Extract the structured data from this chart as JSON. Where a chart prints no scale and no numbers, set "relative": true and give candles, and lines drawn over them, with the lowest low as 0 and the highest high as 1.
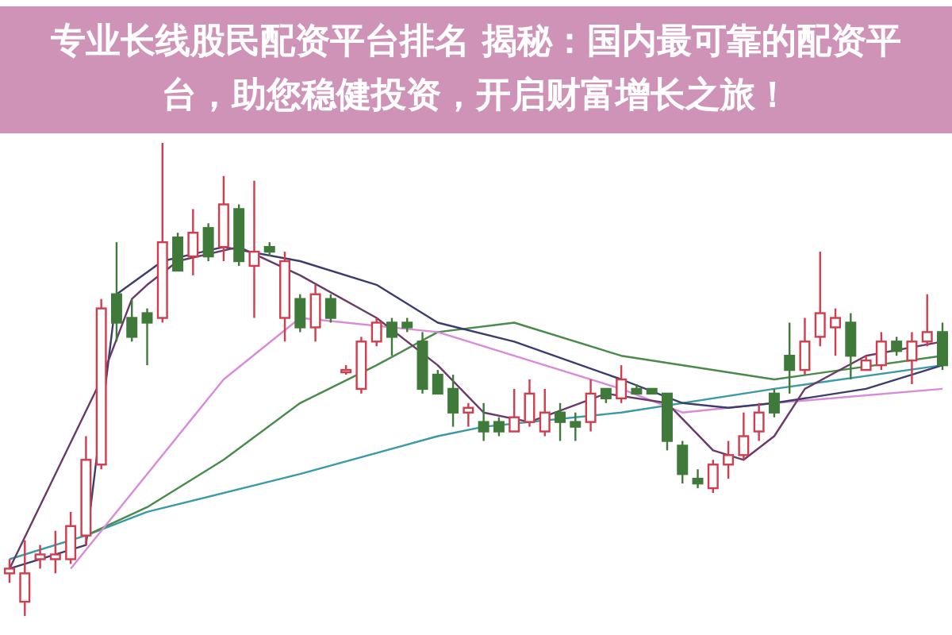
{
  "chart_data": {
    "type": "candlestick",
    "relative": true,
    "title": "专业长线股民配资平台排名 揭秘：国内最可靠的配资平台，助您稳健投资，开启财富增长之旅！",
    "categories": [
      null,
      null,
      null,
      null,
      null,
      null,
      null,
      null,
      null,
      null,
      null,
      null,
      null,
      null,
      null,
      null,
      null,
      null,
      null,
      null,
      null,
      null,
      null,
      null,
      null,
      null,
      null,
      null,
      null,
      null,
      null,
      null,
      null,
      null,
      null,
      null,
      null,
      null,
      null,
      null,
      null,
      null,
      null,
      null,
      null,
      null,
      null,
      null,
      null,
      null,
      null,
      null,
      null,
      null,
      null,
      null,
      null,
      null,
      null,
      null,
      null,
      null
    ],
    "ohlc": [
      [
        0.09,
        0.12,
        0.07,
        0.1
      ],
      [
        0.03,
        0.16,
        0,
        0.09
      ],
      [
        0.12,
        0.15,
        0.1,
        0.13
      ],
      [
        0.12,
        0.18,
        0.09,
        0.13
      ],
      [
        0.12,
        0.22,
        0.11,
        0.19
      ],
      [
        0.17,
        0.38,
        0.15,
        0.33
      ],
      [
        0.32,
        0.67,
        0.31,
        0.65
      ],
      [
        0.68,
        0.79,
        0.58,
        0.62
      ],
      [
        0.63,
        0.67,
        0.58,
        0.59
      ],
      [
        0.64,
        0.65,
        0.53,
        0.62
      ],
      [
        0.63,
        1,
        0.62,
        0.79
      ],
      [
        0.8,
        0.81,
        0.73,
        0.73
      ],
      [
        0.76,
        0.86,
        0.72,
        0.81
      ],
      [
        0.82,
        0.83,
        0.75,
        0.76
      ],
      [
        0.78,
        0.93,
        0.75,
        0.87
      ],
      [
        0.86,
        0.87,
        0.74,
        0.75
      ],
      [
        0.74,
        0.92,
        0.63,
        0.77
      ],
      [
        0.78,
        0.79,
        0.76,
        0.77
      ],
      [
        0.63,
        0.77,
        0.58,
        0.75
      ],
      [
        0.67,
        0.68,
        0.6,
        0.61
      ],
      [
        0.61,
        0.7,
        0.58,
        0.68
      ],
      [
        0.67,
        0.68,
        0.62,
        0.63
      ],
      [
        0.52,
        0.53,
        0.51,
        0.52
      ],
      [
        0.48,
        0.59,
        0.47,
        0.58
      ],
      [
        0.58,
        0.63,
        0.57,
        0.62
      ],
      [
        0.62,
        0.63,
        0.55,
        0.59
      ],
      [
        0.62,
        0.63,
        0.6,
        0.61
      ],
      [
        0.58,
        0.6,
        0.47,
        0.48
      ],
      [
        0.51,
        0.52,
        0.47,
        0.47
      ],
      [
        0.48,
        0.51,
        0.4,
        0.43
      ],
      [
        0.43,
        0.45,
        0.4,
        0.44
      ],
      [
        0.41,
        0.45,
        0.37,
        0.39
      ],
      [
        0.41,
        0.42,
        0.38,
        0.39
      ],
      [
        0.39,
        0.48,
        0.39,
        0.42
      ],
      [
        0.41,
        0.5,
        0.4,
        0.47
      ],
      [
        0.39,
        0.48,
        0.38,
        0.43
      ],
      [
        0.43,
        0.45,
        0.37,
        0.41
      ],
      [
        0.41,
        0.43,
        0.37,
        0.4
      ],
      [
        0.41,
        0.5,
        0.39,
        0.47
      ],
      [
        0.48,
        0.48,
        0.45,
        0.46
      ],
      [
        0.46,
        0.53,
        0.45,
        0.5
      ],
      [
        0.48,
        0.49,
        0.47,
        0.47
      ],
      [
        0.48,
        0.48,
        0.47,
        0.47
      ],
      [
        0.47,
        0.47,
        0.35,
        0.37
      ],
      [
        0.36,
        0.37,
        0.28,
        0.3
      ],
      [
        0.29,
        0.31,
        0.27,
        0.28
      ],
      [
        0.27,
        0.33,
        0.26,
        0.32
      ],
      [
        0.32,
        0.37,
        0.29,
        0.34
      ],
      [
        0.34,
        0.43,
        0.33,
        0.38
      ],
      [
        0.39,
        0.45,
        0.37,
        0.43
      ],
      [
        0.47,
        0.48,
        0.42,
        0.43
      ],
      [
        0.55,
        0.62,
        0.47,
        0.52
      ],
      [
        0.52,
        0.63,
        0.51,
        0.58
      ],
      [
        0.59,
        0.77,
        0.57,
        0.64
      ],
      [
        0.61,
        0.65,
        0.55,
        0.63
      ],
      [
        0.62,
        0.64,
        0.5,
        0.55
      ],
      [
        0.52,
        0.55,
        0.52,
        0.54
      ],
      [
        0.53,
        0.6,
        0.52,
        0.58
      ],
      [
        0.58,
        0.59,
        0.55,
        0.56
      ],
      [
        0.54,
        0.6,
        0.49,
        0.58
      ],
      [
        0.58,
        0.68,
        0.57,
        0.6
      ],
      [
        0.6,
        0.62,
        0.52,
        0.53
      ]
    ],
    "series": [
      {
        "type": "line",
        "color": "#3a9aa8",
        "values": [
          0.12,
          null,
          null,
          null,
          null,
          0.17,
          null,
          null,
          null,
          0.22,
          null,
          null,
          null,
          null,
          null,
          null,
          null,
          null,
          null,
          0.3,
          null,
          null,
          null,
          null,
          null,
          null,
          null,
          null,
          0.38,
          null,
          null,
          0.4,
          null,
          null,
          null,
          null,
          null,
          null,
          null,
          null,
          0.43,
          null,
          null,
          null,
          null,
          null,
          null,
          null,
          null,
          null,
          0.48,
          null,
          null,
          null,
          null,
          null,
          null,
          null,
          null,
          null,
          null,
          0.53
        ]
      },
      {
        "type": "line",
        "color": "#4a8a4a",
        "values": [
          null,
          null,
          null,
          null,
          null,
          0.17,
          null,
          null,
          null,
          0.23,
          null,
          null,
          null,
          null,
          0.33,
          null,
          null,
          null,
          null,
          0.45,
          null,
          null,
          null,
          null,
          0.53,
          null,
          null,
          null,
          0.6,
          null,
          null,
          null,
          null,
          0.62,
          null,
          null,
          null,
          null,
          null,
          null,
          0.55,
          null,
          null,
          null,
          null,
          null,
          null,
          null,
          null,
          null,
          0.5,
          null,
          null,
          null,
          null,
          null,
          null,
          null,
          null,
          null,
          null,
          0.55
        ]
      },
      {
        "type": "line",
        "color": "#d98ad9",
        "values": [
          null,
          null,
          null,
          null,
          0.1,
          null,
          null,
          null,
          null,
          0.3,
          null,
          null,
          null,
          null,
          0.5,
          null,
          null,
          null,
          null,
          0.63,
          null,
          null,
          null,
          null,
          null,
          null,
          null,
          null,
          0.6,
          null,
          null,
          null,
          null,
          null,
          null,
          null,
          null,
          null,
          null,
          null,
          0.48,
          null,
          null,
          null,
          0.43,
          null,
          null,
          null,
          null,
          null,
          0.45,
          null,
          null,
          null,
          null,
          null,
          null,
          null,
          null,
          null,
          null,
          0.48
        ]
      },
      {
        "type": "line",
        "color": "#3c3c6e",
        "values": [
          0.1,
          null,
          null,
          null,
          null,
          0.15,
          null,
          0.68,
          null,
          null,
          0.75,
          null,
          null,
          null,
          0.78,
          null,
          null,
          null,
          null,
          0.75,
          null,
          null,
          null,
          null,
          0.7,
          null,
          null,
          null,
          0.62,
          null,
          null,
          null,
          null,
          0.58,
          null,
          null,
          null,
          null,
          null,
          null,
          0.5,
          null,
          null,
          null,
          0.45,
          null,
          null,
          0.44,
          null,
          null,
          0.45,
          null,
          null,
          null,
          null,
          null,
          0.48,
          null,
          null,
          null,
          null,
          0.53
        ]
      },
      {
        "type": "line",
        "color": "#6a3a6a",
        "values": [
          0.1,
          null,
          null,
          null,
          null,
          null,
          0.5,
          null,
          0.67,
          0.7,
          null,
          0.75,
          null,
          null,
          null,
          0.78,
          null,
          null,
          null,
          0.72,
          null,
          null,
          null,
          null,
          0.63,
          null,
          null,
          null,
          0.53,
          null,
          null,
          0.43,
          null,
          null,
          0.41,
          null,
          null,
          null,
          null,
          0.47,
          null,
          null,
          null,
          0.45,
          null,
          null,
          0.35,
          null,
          0.33,
          null,
          0.38,
          null,
          0.48,
          null,
          null,
          null,
          0.55,
          null,
          null,
          null,
          null,
          0.58
        ]
      }
    ]
  }
}
